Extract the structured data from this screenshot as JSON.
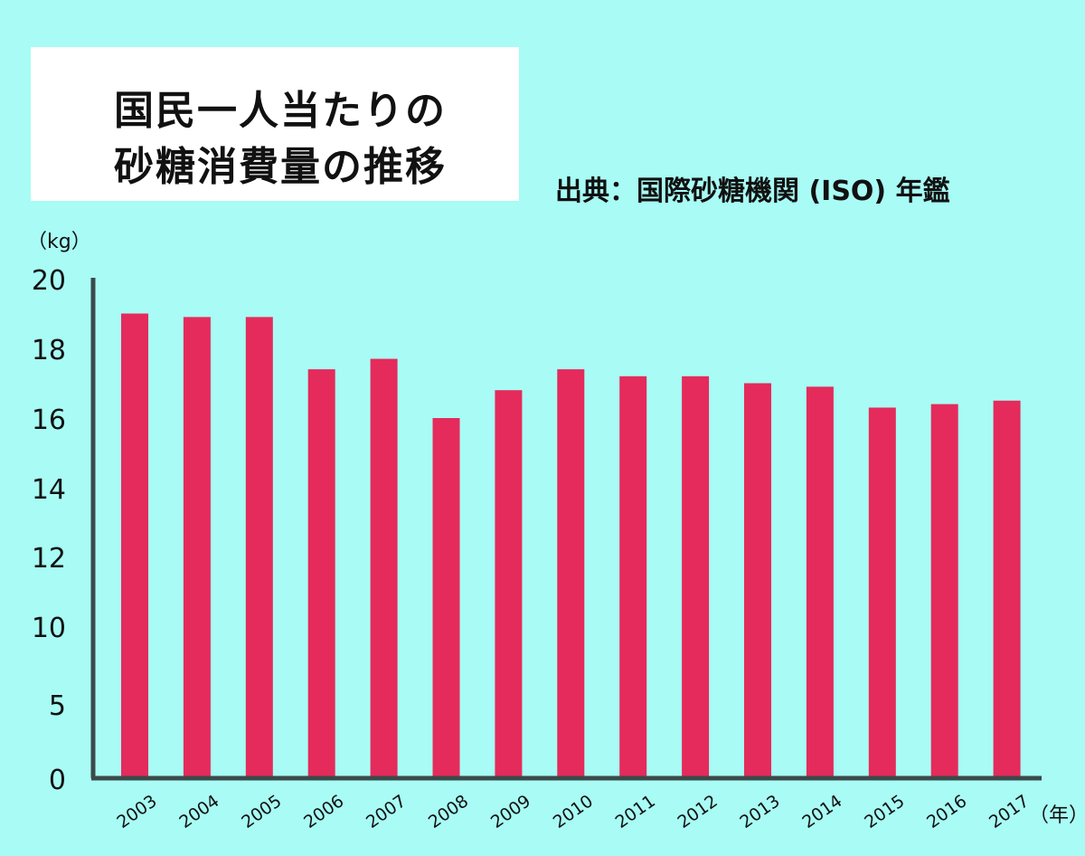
{
  "title": {
    "line1": "国民一人当たりの",
    "line2": "砂糖消費量の推移"
  },
  "source": "出典：国際砂糖機関 (ISO) 年鑑",
  "chart_data": {
    "type": "bar",
    "categories": [
      "2003",
      "2004",
      "2005",
      "2006",
      "2007",
      "2008",
      "2009",
      "2010",
      "2011",
      "2012",
      "2013",
      "2014",
      "2015",
      "2016",
      "2017"
    ],
    "values": [
      19.0,
      18.9,
      18.9,
      17.4,
      17.7,
      16.0,
      16.8,
      17.4,
      17.2,
      17.2,
      17.0,
      16.9,
      16.3,
      16.4,
      16.5
    ],
    "y_unit": "（kg）",
    "x_unit": "（年）",
    "y_ticks": [
      "0",
      "5",
      "10",
      "12",
      "14",
      "16",
      "18",
      "20"
    ],
    "ylim": [
      0,
      20
    ],
    "bar_color": "#e42b5b",
    "axis_color": "#3b4a4a",
    "grid": false
  }
}
